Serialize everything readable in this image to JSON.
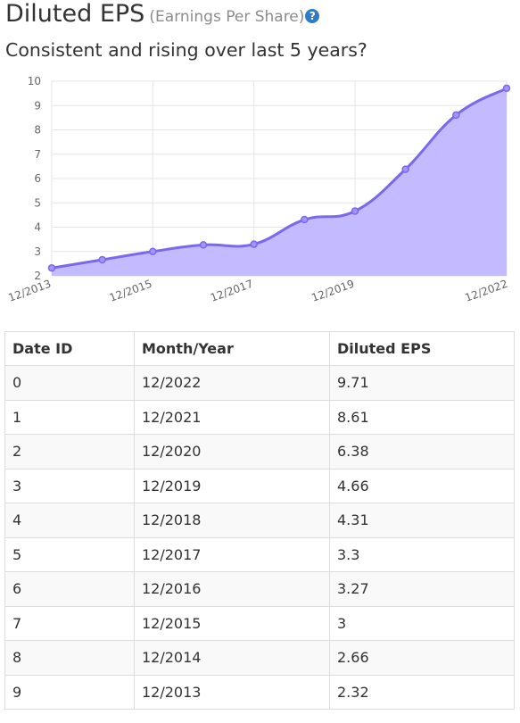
{
  "header": {
    "title": "Diluted EPS",
    "subtitle": "(Earnings Per Share)",
    "help_icon": "question-circle-icon",
    "question": "Consistent and rising over last 5 years?"
  },
  "colors": {
    "line": "#7b68ee",
    "fill": "#c4baff",
    "grid": "#e6e6e6",
    "help": "#2f7cc4"
  },
  "chart_data": {
    "type": "area",
    "title": "",
    "xlabel": "",
    "ylabel": "",
    "x": [
      "12/2013",
      "12/2014",
      "12/2015",
      "12/2016",
      "12/2017",
      "12/2018",
      "12/2019",
      "12/2020",
      "12/2021",
      "12/2022"
    ],
    "xtick_labels": [
      "12/2013",
      "12/2015",
      "12/2017",
      "12/2019",
      "12/2022"
    ],
    "series": [
      {
        "values": [
          2.32,
          2.66,
          3,
          3.27,
          3.3,
          4.31,
          4.66,
          6.38,
          8.61,
          9.71
        ]
      }
    ],
    "ylim": [
      2,
      10
    ],
    "yticks": [
      2,
      3,
      4,
      5,
      6,
      7,
      8,
      9,
      10
    ],
    "grid": true
  },
  "table": {
    "headers": [
      "Date ID",
      "Month/Year",
      "Diluted EPS"
    ],
    "rows": [
      [
        "0",
        "12/2022",
        "9.71"
      ],
      [
        "1",
        "12/2021",
        "8.61"
      ],
      [
        "2",
        "12/2020",
        "6.38"
      ],
      [
        "3",
        "12/2019",
        "4.66"
      ],
      [
        "4",
        "12/2018",
        "4.31"
      ],
      [
        "5",
        "12/2017",
        "3.3"
      ],
      [
        "6",
        "12/2016",
        "3.27"
      ],
      [
        "7",
        "12/2015",
        "3"
      ],
      [
        "8",
        "12/2014",
        "2.66"
      ],
      [
        "9",
        "12/2013",
        "2.32"
      ]
    ]
  }
}
